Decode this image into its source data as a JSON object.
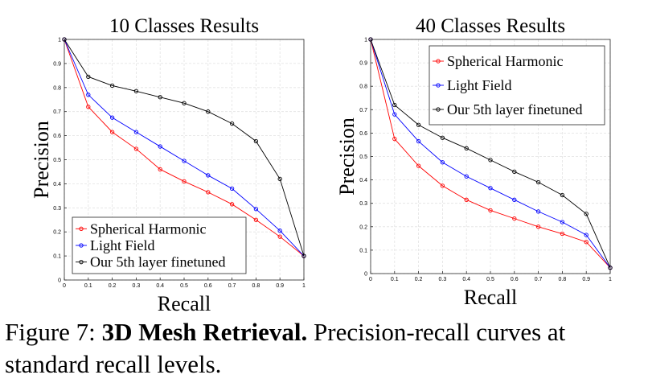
{
  "chart_data": [
    {
      "type": "line",
      "title": "10 Classes Results",
      "xlabel": "Recall",
      "ylabel": "Precision",
      "xlim": [
        0,
        1
      ],
      "ylim": [
        0,
        1
      ],
      "grid": true,
      "legend_position": "bottom-left",
      "x": [
        0,
        0.1,
        0.2,
        0.3,
        0.4,
        0.5,
        0.6,
        0.7,
        0.8,
        0.9,
        1
      ],
      "xticks": [
        "0",
        "0.1",
        "0.2",
        "0.3",
        "0.4",
        "0.5",
        "0.6",
        "0.7",
        "0.8",
        "0.9",
        "1"
      ],
      "yticks": [
        "0",
        "0.1",
        "0.2",
        "0.3",
        "0.4",
        "0.5",
        "0.6",
        "0.7",
        "0.8",
        "0.9",
        "1"
      ],
      "series": [
        {
          "name": "Spherical Harmonic",
          "color": "#ff0000",
          "values": [
            1.0,
            0.72,
            0.615,
            0.545,
            0.46,
            0.41,
            0.365,
            0.315,
            0.25,
            0.18,
            0.1
          ]
        },
        {
          "name": "Light Field",
          "color": "#0000ff",
          "values": [
            1.0,
            0.77,
            0.675,
            0.615,
            0.555,
            0.495,
            0.435,
            0.38,
            0.295,
            0.205,
            0.1
          ]
        },
        {
          "name": "Our 5th layer finetuned",
          "color": "#000000",
          "values": [
            1.0,
            0.845,
            0.808,
            0.785,
            0.76,
            0.735,
            0.7,
            0.65,
            0.577,
            0.42,
            0.1
          ]
        }
      ]
    },
    {
      "type": "line",
      "title": "40 Classes Results",
      "xlabel": "Recall",
      "ylabel": "Precision",
      "xlim": [
        0,
        1
      ],
      "ylim": [
        0,
        1
      ],
      "grid": true,
      "legend_position": "top-right",
      "x": [
        0,
        0.1,
        0.2,
        0.3,
        0.4,
        0.5,
        0.6,
        0.7,
        0.8,
        0.9,
        1
      ],
      "xticks": [
        "0",
        "0.1",
        "0.2",
        "0.3",
        "0.4",
        "0.5",
        "0.6",
        "0.7",
        "0.8",
        "0.9",
        "1"
      ],
      "yticks": [
        "0",
        "0.1",
        "0.2",
        "0.3",
        "0.4",
        "0.5",
        "0.6",
        "0.7",
        "0.8",
        "0.9",
        "1"
      ],
      "series": [
        {
          "name": "Spherical Harmonic",
          "color": "#ff0000",
          "values": [
            1.0,
            0.575,
            0.46,
            0.375,
            0.315,
            0.27,
            0.235,
            0.2,
            0.17,
            0.135,
            0.025
          ]
        },
        {
          "name": "Light Field",
          "color": "#0000ff",
          "values": [
            1.0,
            0.68,
            0.565,
            0.475,
            0.415,
            0.365,
            0.315,
            0.265,
            0.22,
            0.165,
            0.025
          ]
        },
        {
          "name": "Our 5th layer finetuned",
          "color": "#000000",
          "values": [
            1.0,
            0.72,
            0.635,
            0.58,
            0.535,
            0.485,
            0.435,
            0.39,
            0.335,
            0.255,
            0.025
          ]
        }
      ]
    }
  ],
  "caption": {
    "prefix": "Figure 7: ",
    "title": "3D Mesh Retrieval.",
    "text": " Precision-recall curves at standard recall levels."
  }
}
